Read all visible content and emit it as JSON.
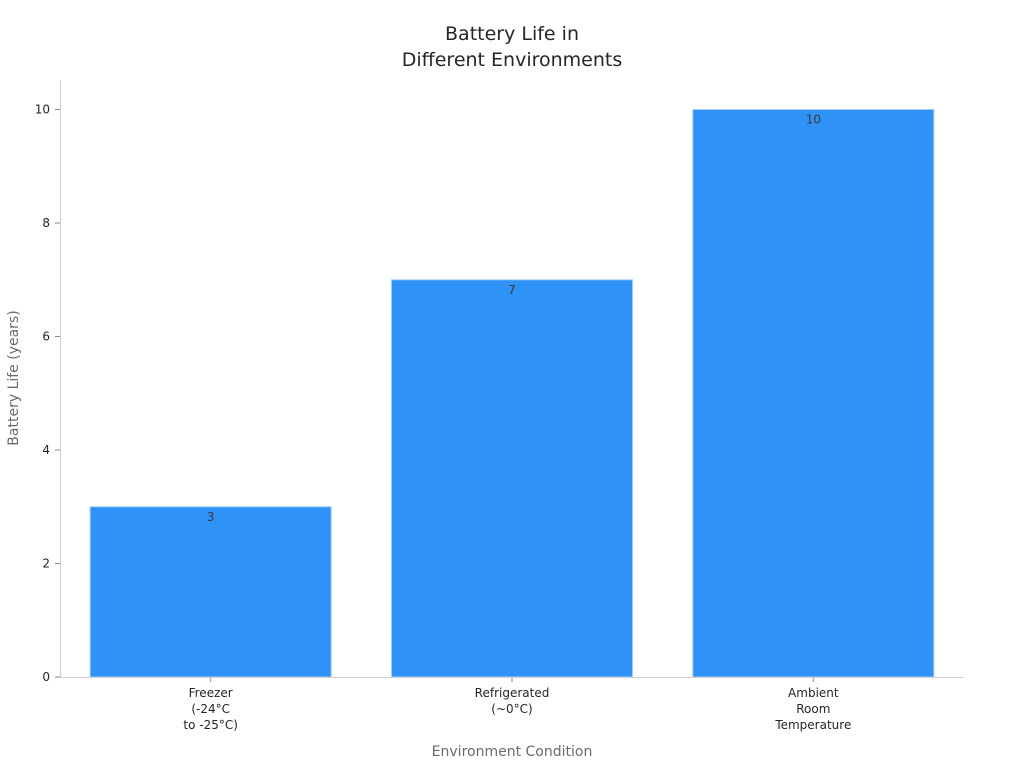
{
  "chart_data": {
    "type": "bar",
    "title_lines": [
      "Battery Life in",
      "Different Environments"
    ],
    "xlabel": "Environment Condition",
    "ylabel": "Battery Life (years)",
    "categories": [
      [
        "Freezer",
        "(-24°C",
        "to -25°C)"
      ],
      [
        "Refrigerated",
        "(~0°C)"
      ],
      [
        "Ambient",
        "Room",
        "Temperature"
      ]
    ],
    "values": [
      3,
      7,
      10
    ],
    "data_labels": [
      "3",
      "7",
      "10"
    ],
    "ylim": [
      0,
      10.5
    ],
    "yticks": [
      0,
      2,
      4,
      6,
      8,
      10
    ],
    "ytick_labels": [
      "0",
      "2",
      "4",
      "6",
      "8",
      "10"
    ],
    "bar_color": "#2f92f7",
    "grid": false,
    "legend": "none"
  }
}
